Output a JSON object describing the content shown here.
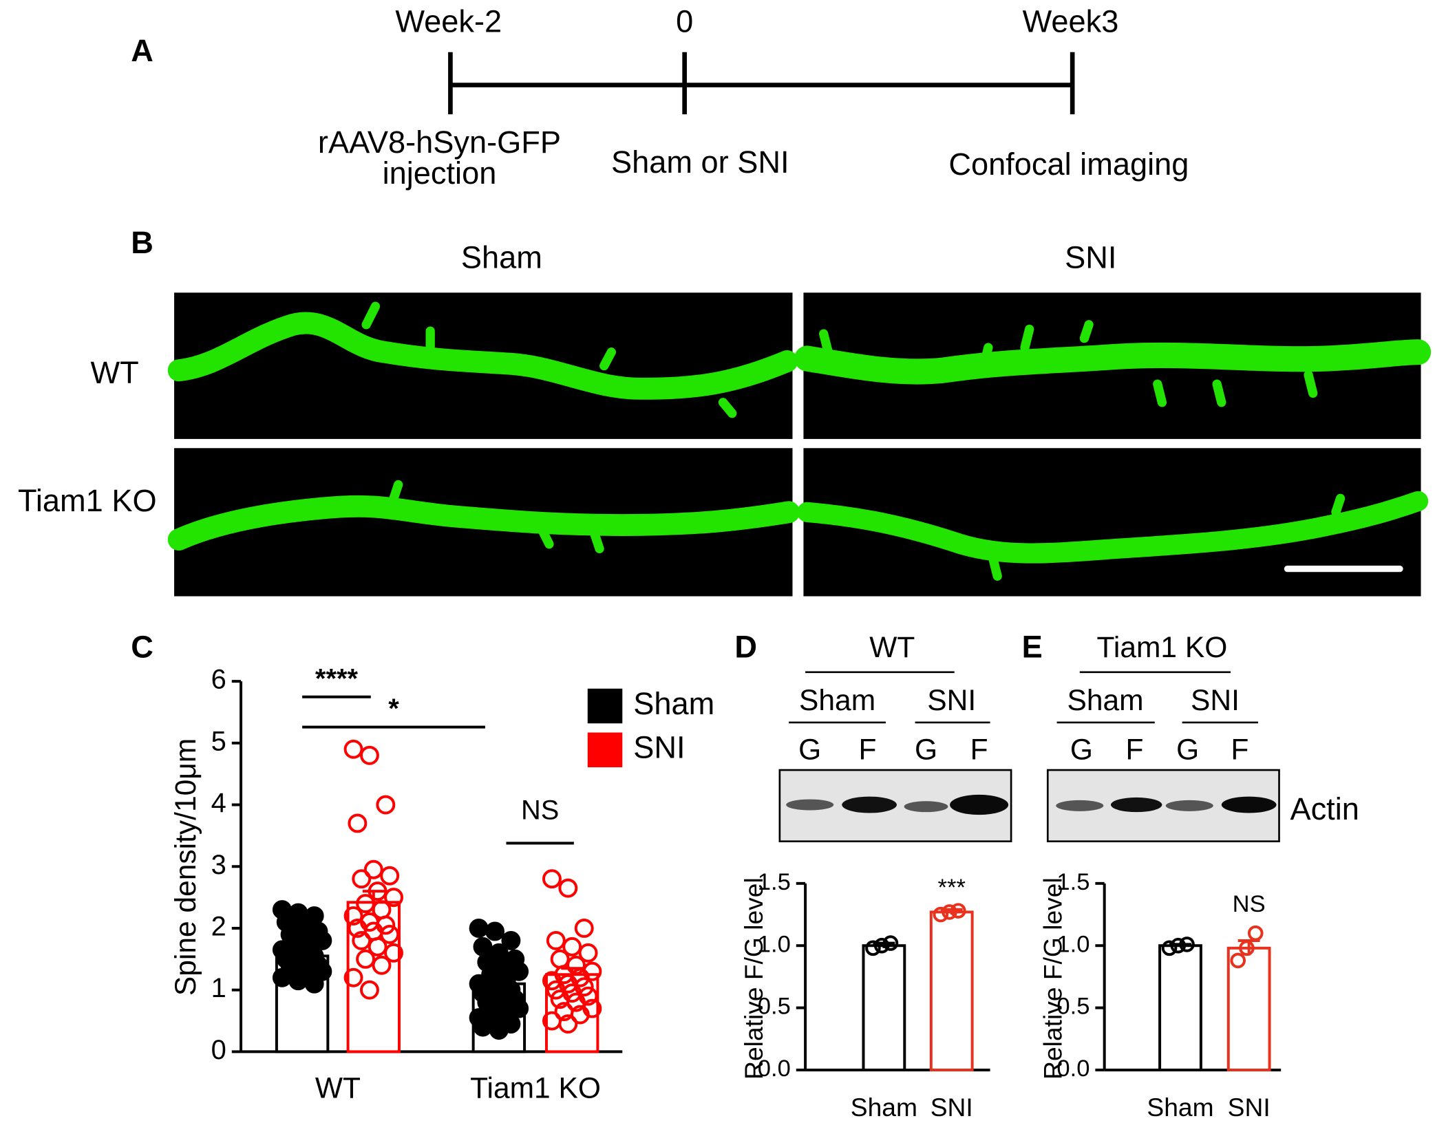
{
  "panel_a": {
    "label": "A",
    "timepoints": [
      "Week-2",
      "0",
      "Week3"
    ],
    "events": [
      [
        "rAAV8-hSyn-GFP",
        "injection"
      ],
      [
        "Sham or SNI"
      ],
      [
        "Confocal imaging"
      ]
    ]
  },
  "panel_b": {
    "label": "B",
    "columns": [
      "Sham",
      "SNI"
    ],
    "rows": [
      "WT",
      "Tiam1 KO"
    ]
  },
  "blots": [
    {
      "label": "D",
      "genotype": "WT",
      "groups": [
        "Sham",
        "SNI"
      ],
      "lanes": [
        "G",
        "F",
        "G",
        "F"
      ],
      "protein": "Actin"
    },
    {
      "label": "E",
      "genotype": "Tiam1 KO",
      "groups": [
        "Sham",
        "SNI"
      ],
      "lanes": [
        "G",
        "F",
        "G",
        "F"
      ]
    }
  ],
  "chart_data": [
    {
      "type": "bar",
      "panel_label": "C",
      "y_label": "Spine density/10μm",
      "categories": [
        "WT",
        "Tiam1 KO"
      ],
      "bar_fill": "#ffffff",
      "series": [
        {
          "name": "Sham",
          "color": "#000000",
          "marker_fill": true,
          "values": [
            1.55,
            1.1
          ],
          "errors": [
            0.07,
            0.08
          ],
          "points": [
            [
              2.3,
              2.25,
              2.2,
              2.1,
              2.0,
              1.95,
              1.9,
              1.85,
              1.8,
              1.75,
              1.7,
              1.65,
              1.6,
              1.55,
              1.5,
              1.45,
              1.4,
              1.4,
              1.35,
              1.3,
              1.3,
              1.25,
              1.2,
              1.15,
              1.1
            ],
            [
              2.0,
              1.95,
              1.8,
              1.7,
              1.6,
              1.5,
              1.45,
              1.4,
              1.3,
              1.25,
              1.2,
              1.1,
              1.05,
              1.0,
              0.95,
              0.9,
              0.85,
              0.8,
              0.75,
              0.7,
              0.65,
              0.6,
              0.55,
              0.5,
              0.45,
              0.4,
              0.35
            ]
          ]
        },
        {
          "name": "SNI",
          "color": "#ff0000",
          "marker_fill": false,
          "values": [
            2.42,
            1.25
          ],
          "errors": [
            0.18,
            0.1
          ],
          "points": [
            [
              4.9,
              4.8,
              4.0,
              3.7,
              2.95,
              2.85,
              2.8,
              2.6,
              2.5,
              2.4,
              2.3,
              2.2,
              2.1,
              2.05,
              2.0,
              1.95,
              1.9,
              1.8,
              1.7,
              1.6,
              1.5,
              1.4,
              1.2,
              1.0
            ],
            [
              2.8,
              2.65,
              2.0,
              1.8,
              1.7,
              1.6,
              1.5,
              1.4,
              1.3,
              1.25,
              1.2,
              1.15,
              1.1,
              1.05,
              1.0,
              0.95,
              0.9,
              0.85,
              0.8,
              0.7,
              0.65,
              0.6,
              0.5,
              0.45
            ]
          ]
        }
      ],
      "ylim": [
        0,
        6
      ],
      "yticks": [
        0,
        1,
        2,
        3,
        4,
        5,
        6
      ],
      "annotations": [
        "****",
        "*",
        "NS"
      ],
      "legend": true
    },
    {
      "type": "bar",
      "y_label": "Relative F/G level",
      "categories": [
        "Sham",
        "SNI"
      ],
      "bar_fill": "#ffffff",
      "marker_fill": false,
      "values": [
        1.0,
        1.27
      ],
      "errors": [
        0.02,
        0.02
      ],
      "points": [
        [
          0.98,
          1.0,
          1.02
        ],
        [
          1.25,
          1.27,
          1.28
        ]
      ],
      "colors": [
        "#000000",
        "#e8321e"
      ],
      "ylim": [
        0,
        1.5
      ],
      "yticks": [
        {
          "value": 0,
          "label": "0.0"
        },
        0.5,
        {
          "value": 1,
          "label": "1.0"
        },
        1.5
      ],
      "annotations": [
        "***"
      ]
    },
    {
      "type": "bar",
      "y_label": "Relative F/G level",
      "categories": [
        "Sham",
        "SNI"
      ],
      "bar_fill": "#ffffff",
      "marker_fill": false,
      "values": [
        1.0,
        0.98
      ],
      "errors": [
        0.01,
        0.06
      ],
      "points": [
        [
          0.98,
          1.0,
          1.01
        ],
        [
          0.88,
          0.98,
          1.1
        ]
      ],
      "colors": [
        "#000000",
        "#e8321e"
      ],
      "ylim": [
        0,
        1.5
      ],
      "yticks": [
        {
          "value": 0,
          "label": "0.0"
        },
        0.5,
        {
          "value": 1,
          "label": "1.0"
        },
        1.5
      ],
      "annotations": [
        "NS"
      ]
    }
  ]
}
